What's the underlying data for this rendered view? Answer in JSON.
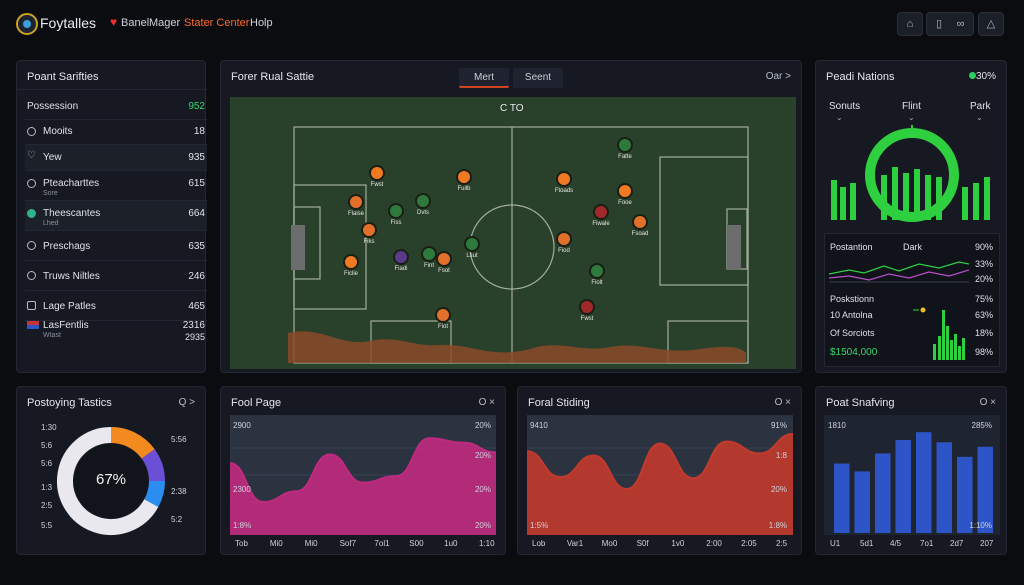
{
  "header": {
    "brand": "Foytalles",
    "nav": [
      "Banel",
      "Mager",
      "Stater Center",
      "Holp"
    ]
  },
  "stats_panel": {
    "title": "Poant Sarifties",
    "rows": [
      {
        "label": "Possession",
        "value": "952",
        "value_color": "#3ad66a"
      },
      {
        "label": "Mooits",
        "value": "18"
      },
      {
        "label": "Yew",
        "value": "935"
      },
      {
        "label": "Pteacharttes",
        "sub": "Sore",
        "value": "615"
      },
      {
        "label": "Theescantes",
        "sub": "Lhed",
        "value": "664"
      },
      {
        "label": "Preschags",
        "value": "635"
      },
      {
        "label": "Truws Niltles",
        "value": "246"
      },
      {
        "label": "Lage Patles",
        "value": "465"
      },
      {
        "label": "LasFentlis",
        "sub": "Wtast",
        "value": "2316",
        "value2": "2935"
      }
    ]
  },
  "pitch_panel": {
    "title": "Forer Rual Sattie",
    "tabs": [
      "Mert",
      "Seent"
    ],
    "control": "Oar >",
    "score": "C TO",
    "players": [
      {
        "label": "Fwst",
        "color": "#f07a22"
      },
      {
        "label": "Fuilb",
        "color": "#f07a22"
      },
      {
        "label": "Flaise",
        "color": "#e0702a"
      },
      {
        "label": "Dvts",
        "color": "#2e7a3c"
      },
      {
        "label": "Fiss",
        "color": "#2e7a3c"
      },
      {
        "label": "Fiks",
        "color": "#e0702a"
      },
      {
        "label": "Fint",
        "color": "#2e7a3c"
      },
      {
        "label": "Fiadi",
        "color": "#5a3a8a"
      },
      {
        "label": "Lsut",
        "color": "#2e7a3c"
      },
      {
        "label": "Ficlie",
        "color": "#f07a22"
      },
      {
        "label": "Fsot",
        "color": "#e0702a"
      },
      {
        "label": "Fatte",
        "color": "#2e7a3c"
      },
      {
        "label": "Ftoads",
        "color": "#f07a22"
      },
      {
        "label": "Fooe",
        "color": "#f07a22"
      },
      {
        "label": "Fiwale",
        "color": "#a02a2a"
      },
      {
        "label": "Fsoad",
        "color": "#e0702a"
      },
      {
        "label": "Fiod",
        "color": "#e0702a"
      },
      {
        "label": "Fiolt",
        "color": "#2e7a3c"
      },
      {
        "label": "Fwst",
        "color": "#a02a2a"
      },
      {
        "label": "Fiot",
        "color": "#e0702a"
      }
    ]
  },
  "nations_panel": {
    "title": "Peadi Nations",
    "badge": "30%",
    "columns": [
      "Sonuts",
      "Flint",
      "Park"
    ],
    "rows": [
      {
        "label": "Postantion",
        "mid": "Dark",
        "value": "90%"
      },
      {
        "label": "",
        "value": "33%"
      },
      {
        "label": "",
        "value": "20%"
      },
      {
        "label": "Poskstionn",
        "value": "75%"
      },
      {
        "label": "10 Antolna",
        "value": "63%"
      },
      {
        "label": "Of Sorciots",
        "value": "18%"
      },
      {
        "label": "$1504,000",
        "value": "98%",
        "label_color": "#3ad66a"
      }
    ]
  },
  "tactics_panel": {
    "title": "Postoying Tastics",
    "control": "Q >",
    "center_value": "67%",
    "left_ticks": [
      "1:30",
      "5:6",
      "5:6",
      "1:3",
      "2:5",
      "5:5"
    ],
    "right_ticks": [
      "5:56",
      "2:38",
      "5:2"
    ],
    "chart_data": {
      "type": "pie",
      "values": [
        67,
        15,
        10,
        8
      ],
      "colors": [
        "#e8e8ee",
        "#f28a1f",
        "#6b4fd6",
        "#2c8df0"
      ]
    }
  },
  "fool_page_panel": {
    "title": "Fool Page",
    "control": "O ×",
    "y_left": [
      "2900",
      "2300",
      "1:8%"
    ],
    "y_right": [
      "20%",
      "20%",
      "20%",
      "20%"
    ],
    "x_ticks": [
      "Tob",
      "Mi0",
      "Mi0",
      "Sof7",
      "7ol1",
      "S00",
      "1u0",
      "1:10"
    ],
    "chart_data": {
      "type": "area",
      "color": "#c02a7f",
      "values": [
        61,
        25,
        35,
        69,
        43,
        49,
        84,
        80,
        71
      ]
    }
  },
  "foral_panel": {
    "title": "Foral Stiding",
    "control": "O ×",
    "y_left": [
      "9410",
      "1:5%"
    ],
    "y_right": [
      "91%",
      "1:8",
      "20%",
      "1:8%"
    ],
    "x_ticks": [
      "Lob",
      "Var1",
      "Mo0",
      "S0f",
      "1v0",
      "2:00",
      "2:05",
      "2:5"
    ],
    "chart_data": {
      "type": "area",
      "color": "#c23a2e",
      "values": [
        72,
        48,
        68,
        37,
        79,
        47,
        81,
        70,
        88
      ]
    }
  },
  "shafving_panel": {
    "title": "Poat Snafving",
    "control": "O ×",
    "y_left": [
      "1810"
    ],
    "y_right": [
      "285%",
      "1:10%"
    ],
    "x_ticks": [
      "U1",
      "5d1",
      "4/5",
      "7o1",
      "2d7",
      "207"
    ],
    "chart_data": {
      "type": "bar",
      "color": "#2e55c8",
      "values": [
        62,
        55,
        71,
        83,
        90,
        81,
        68,
        77
      ]
    }
  }
}
